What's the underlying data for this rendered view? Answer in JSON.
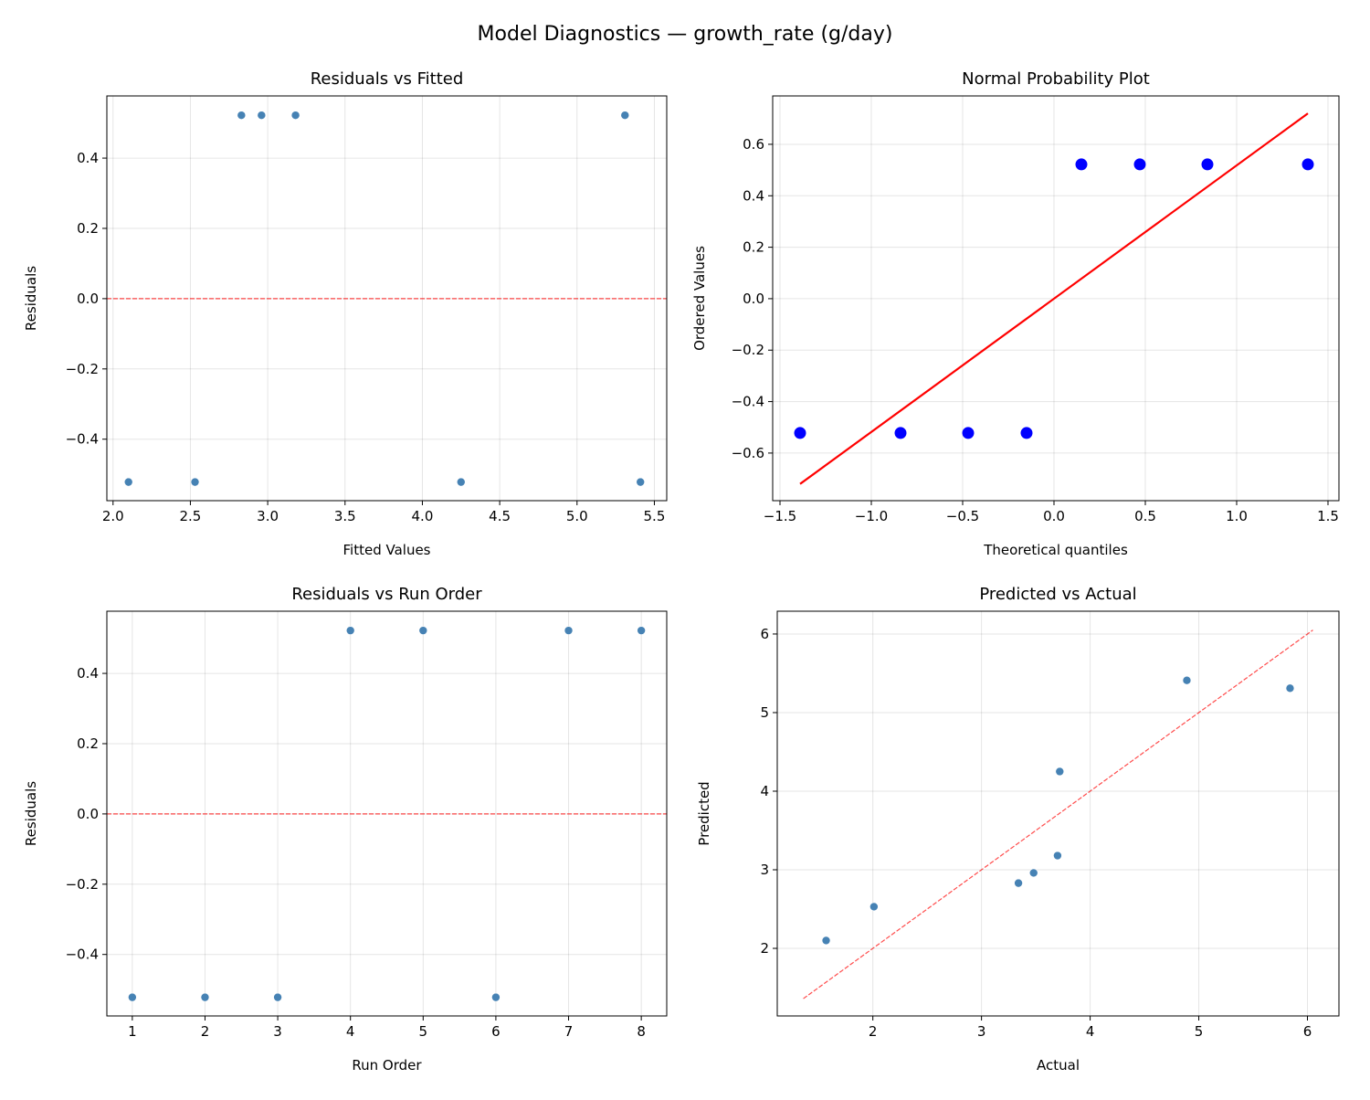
{
  "suptitle": "Model Diagnostics — growth_rate (g/day)",
  "chart_data": [
    {
      "type": "scatter",
      "title": "Residuals vs Fitted",
      "xlabel": "Fitted Values",
      "ylabel": "Residuals",
      "xlim": [
        1.96,
        5.58
      ],
      "ylim": [
        -0.575,
        0.577
      ],
      "xticks": [
        2.0,
        2.5,
        3.0,
        3.5,
        4.0,
        4.5,
        5.0,
        5.5
      ],
      "xtick_labels": [
        "2.0",
        "2.5",
        "3.0",
        "3.5",
        "4.0",
        "4.5",
        "5.0",
        "5.5"
      ],
      "yticks": [
        -0.4,
        -0.2,
        0.0,
        0.2,
        0.4
      ],
      "ytick_labels": [
        "−0.4",
        "−0.2",
        "0.0",
        "0.2",
        "0.4"
      ],
      "grid": true,
      "points": {
        "x": [
          2.1,
          2.53,
          4.25,
          5.41,
          2.83,
          2.96,
          3.18,
          5.31
        ],
        "y": [
          -0.522,
          -0.522,
          -0.522,
          -0.522,
          0.522,
          0.522,
          0.522,
          0.522
        ],
        "color": "#4682b4"
      },
      "hline": {
        "y": 0,
        "color": "#ff0000",
        "style": "dashed"
      }
    },
    {
      "type": "scatter",
      "title": "Normal Probability Plot",
      "xlabel": "Theoretical quantiles",
      "ylabel": "Ordered Values",
      "xlim": [
        -1.54,
        1.56
      ],
      "ylim": [
        -0.785,
        0.788
      ],
      "xticks": [
        -1.5,
        -1.0,
        -0.5,
        0.0,
        0.5,
        1.0,
        1.5
      ],
      "xtick_labels": [
        "−1.5",
        "−1.0",
        "−0.5",
        "0.0",
        "0.5",
        "1.0",
        "1.5"
      ],
      "yticks": [
        -0.6,
        -0.4,
        -0.2,
        0.0,
        0.2,
        0.4,
        0.6
      ],
      "ytick_labels": [
        "−0.6",
        "−0.4",
        "−0.2",
        "0.0",
        "0.2",
        "0.4",
        "0.6"
      ],
      "grid": true,
      "points": {
        "x": [
          -1.39,
          -0.84,
          -0.47,
          -0.15,
          0.15,
          0.47,
          0.84,
          1.39
        ],
        "y": [
          -0.522,
          -0.522,
          -0.522,
          -0.522,
          0.522,
          0.522,
          0.522,
          0.522
        ],
        "color": "#0000ff",
        "large": true
      },
      "line": {
        "x": [
          -1.39,
          1.39
        ],
        "y": [
          -0.72,
          0.72
        ],
        "color": "#ff0000",
        "style": "solid"
      }
    },
    {
      "type": "scatter",
      "title": "Residuals vs Run Order",
      "xlabel": "Run Order",
      "ylabel": "Residuals",
      "xlim": [
        0.65,
        8.35
      ],
      "ylim": [
        -0.575,
        0.577
      ],
      "xticks": [
        1,
        2,
        3,
        4,
        5,
        6,
        7,
        8
      ],
      "xtick_labels": [
        "1",
        "2",
        "3",
        "4",
        "5",
        "6",
        "7",
        "8"
      ],
      "yticks": [
        -0.4,
        -0.2,
        0.0,
        0.2,
        0.4
      ],
      "ytick_labels": [
        "−0.4",
        "−0.2",
        "0.0",
        "0.2",
        "0.4"
      ],
      "grid": true,
      "points": {
        "x": [
          1,
          2,
          3,
          4,
          5,
          6,
          7,
          8
        ],
        "y": [
          -0.522,
          -0.522,
          -0.522,
          0.522,
          0.522,
          -0.522,
          0.522,
          0.522
        ],
        "color": "#4682b4"
      },
      "hline": {
        "y": 0,
        "color": "#ff0000",
        "style": "dashed"
      }
    },
    {
      "type": "scatter",
      "title": "Predicted vs Actual",
      "xlabel": "Actual",
      "ylabel": "Predicted",
      "xlim": [
        1.12,
        6.29
      ],
      "ylim": [
        1.14,
        6.29
      ],
      "xticks": [
        2,
        3,
        4,
        5,
        6
      ],
      "xtick_labels": [
        "2",
        "3",
        "4",
        "5",
        "6"
      ],
      "yticks": [
        2,
        3,
        4,
        5,
        6
      ],
      "ytick_labels": [
        "2",
        "3",
        "4",
        "5",
        "6"
      ],
      "grid": true,
      "points": {
        "x": [
          1.57,
          2.01,
          3.34,
          3.48,
          3.7,
          3.72,
          4.89,
          5.84
        ],
        "y": [
          2.1,
          2.53,
          2.83,
          2.96,
          3.18,
          4.25,
          5.41,
          5.31
        ],
        "color": "#4682b4"
      },
      "line": {
        "x": [
          1.36,
          6.05
        ],
        "y": [
          1.36,
          6.05
        ],
        "color": "#ff0000",
        "style": "dashed"
      }
    }
  ]
}
